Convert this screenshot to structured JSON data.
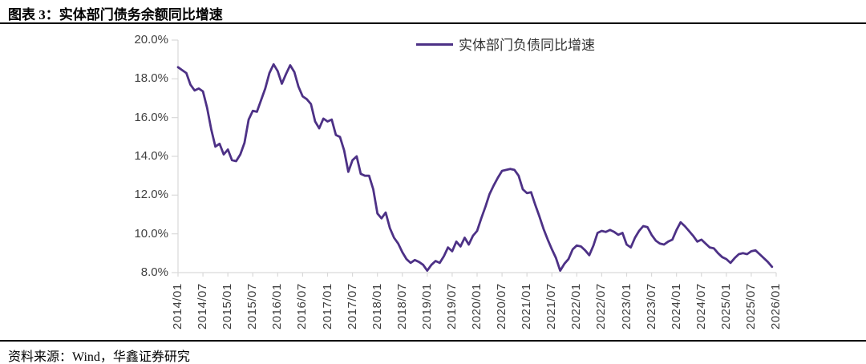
{
  "header": {
    "title": "图表 3：实体部门债务余额同比增速"
  },
  "legend": {
    "label": "实体部门负债同比增速"
  },
  "footer": {
    "source": "资料来源：Wind，华鑫证券研究"
  },
  "colors": {
    "line": "#4D3186",
    "axis": "#D9D9D9",
    "tick_label": "#404040",
    "rule": "#000000"
  },
  "chart_data": {
    "type": "line",
    "title": "实体部门债务余额同比增速",
    "xlabel": "",
    "ylabel": "",
    "y_unit": "%",
    "ylim": [
      8.0,
      20.0
    ],
    "grid": false,
    "legend_position": "top-center",
    "y_tick_labels": [
      "20.0%",
      "18.0%",
      "16.0%",
      "14.0%",
      "12.0%",
      "10.0%",
      "8.0%"
    ],
    "x_tick_labels": [
      "2014/01",
      "2014/07",
      "2015/01",
      "2015/07",
      "2016/01",
      "2016/07",
      "2017/01",
      "2017/07",
      "2018/01",
      "2018/07",
      "2019/01",
      "2019/07",
      "2020/01",
      "2020/07",
      "2021/01",
      "2021/07",
      "2022/01",
      "2022/07",
      "2023/01",
      "2023/07",
      "2024/01",
      "2024/07",
      "2025/01",
      "2025/07",
      "2026/01"
    ],
    "series": [
      {
        "name": "实体部门负债同比增速",
        "color": "#4D3186",
        "frequency": "monthly",
        "x_start": "2014/01",
        "x_end": "2025/12",
        "values": [
          18.6,
          18.45,
          18.3,
          17.7,
          17.4,
          17.5,
          17.35,
          16.5,
          15.4,
          14.5,
          14.65,
          14.1,
          14.35,
          13.8,
          13.75,
          14.1,
          14.7,
          15.9,
          16.35,
          16.3,
          16.9,
          17.5,
          18.3,
          18.75,
          18.4,
          17.75,
          18.25,
          18.7,
          18.35,
          17.6,
          17.1,
          16.95,
          16.7,
          15.8,
          15.45,
          15.95,
          15.8,
          15.9,
          15.1,
          15.0,
          14.3,
          13.2,
          13.8,
          14.0,
          13.1,
          13.0,
          13.0,
          12.3,
          11.05,
          10.8,
          11.1,
          10.3,
          9.8,
          9.5,
          9.05,
          8.7,
          8.5,
          8.65,
          8.55,
          8.4,
          8.1,
          8.4,
          8.6,
          8.5,
          8.85,
          9.3,
          9.1,
          9.6,
          9.35,
          9.8,
          9.45,
          9.9,
          10.15,
          10.8,
          11.4,
          12.05,
          12.5,
          12.9,
          13.25,
          13.3,
          13.35,
          13.3,
          13.0,
          12.3,
          12.1,
          12.15,
          11.5,
          10.9,
          10.25,
          9.7,
          9.2,
          8.75,
          8.1,
          8.45,
          8.7,
          9.2,
          9.4,
          9.35,
          9.15,
          8.9,
          9.4,
          10.05,
          10.15,
          10.1,
          10.2,
          10.1,
          9.95,
          10.05,
          9.45,
          9.3,
          9.8,
          10.15,
          10.4,
          10.35,
          9.95,
          9.65,
          9.5,
          9.45,
          9.6,
          9.7,
          10.2,
          10.6,
          10.4,
          10.15,
          9.9,
          9.6,
          9.7,
          9.5,
          9.3,
          9.25,
          9.0,
          8.8,
          8.7,
          8.5,
          8.75,
          8.95,
          9.0,
          8.95,
          9.1,
          9.15,
          8.95,
          8.75,
          8.55,
          8.3
        ]
      }
    ]
  }
}
